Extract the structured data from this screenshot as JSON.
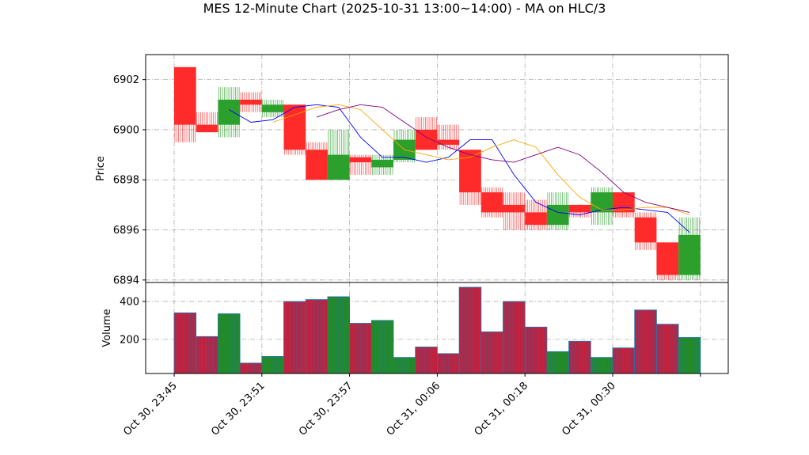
{
  "chart_data": [
    {
      "type": "candlestick",
      "title": "MES 12-Minute Chart (2025-10-31 13:00~14:00) - MA on HLC/3",
      "ylabel": "Price",
      "ylim": [
        6893.9,
        6903.0
      ],
      "yticks": [
        6894,
        6896,
        6898,
        6900,
        6902
      ],
      "grid": true,
      "colors": {
        "up": "#2ca02c",
        "down": "#ff2b2b",
        "ma_fast": "#0000ff",
        "ma_mid": "#ffa500",
        "ma_slow": "#800080"
      },
      "x_tick_labels": [
        "Oct 30, 23:45",
        "Oct 30, 23:51",
        "Oct 30, 23:57",
        "Oct 31, 00:06",
        "Oct 31, 00:18",
        "Oct 31, 00:30"
      ],
      "candles": [
        {
          "open": 6902.5,
          "high": 6902.5,
          "low": 6899.5,
          "close": 6900.2
        },
        {
          "open": 6900.2,
          "high": 6900.7,
          "low": 6899.9,
          "close": 6899.9
        },
        {
          "open": 6900.2,
          "high": 6901.7,
          "low": 6899.7,
          "close": 6901.2
        },
        {
          "open": 6901.2,
          "high": 6901.5,
          "low": 6900.7,
          "close": 6901.0
        },
        {
          "open": 6900.7,
          "high": 6901.2,
          "low": 6900.5,
          "close": 6901.0
        },
        {
          "open": 6901.0,
          "high": 6901.0,
          "low": 6899.0,
          "close": 6899.2
        },
        {
          "open": 6899.2,
          "high": 6899.5,
          "low": 6898.0,
          "close": 6898.0
        },
        {
          "open": 6898.0,
          "high": 6900.0,
          "low": 6898.0,
          "close": 6899.0
        },
        {
          "open": 6898.9,
          "high": 6899.0,
          "low": 6898.2,
          "close": 6898.7
        },
        {
          "open": 6898.5,
          "high": 6899.0,
          "low": 6898.2,
          "close": 6898.8
        },
        {
          "open": 6898.8,
          "high": 6900.0,
          "low": 6898.7,
          "close": 6899.6
        },
        {
          "open": 6900.0,
          "high": 6900.5,
          "low": 6899.2,
          "close": 6899.2
        },
        {
          "open": 6899.6,
          "high": 6900.2,
          "low": 6899.2,
          "close": 6899.4
        },
        {
          "open": 6899.2,
          "high": 6899.2,
          "low": 6897.0,
          "close": 6897.5
        },
        {
          "open": 6897.5,
          "high": 6897.7,
          "low": 6896.5,
          "close": 6896.7
        },
        {
          "open": 6897.0,
          "high": 6897.5,
          "low": 6896.0,
          "close": 6896.7
        },
        {
          "open": 6896.7,
          "high": 6897.2,
          "low": 6896.0,
          "close": 6896.2
        },
        {
          "open": 6896.2,
          "high": 6897.5,
          "low": 6896.0,
          "close": 6897.0
        },
        {
          "open": 6897.0,
          "high": 6897.0,
          "low": 6896.5,
          "close": 6896.7
        },
        {
          "open": 6896.7,
          "high": 6897.7,
          "low": 6896.2,
          "close": 6897.5
        },
        {
          "open": 6897.5,
          "high": 6897.5,
          "low": 6896.5,
          "close": 6896.7
        },
        {
          "open": 6896.5,
          "high": 6896.7,
          "low": 6895.2,
          "close": 6895.5
        },
        {
          "open": 6895.5,
          "high": 6895.5,
          "low": 6894.0,
          "close": 6894.2
        },
        {
          "open": 6894.2,
          "high": 6896.5,
          "low": 6894.0,
          "close": 6895.8
        }
      ],
      "moving_averages": [
        {
          "color": "blue",
          "values": [
            6900.8,
            6900.3,
            6900.4,
            6900.9,
            6901.0,
            6900.9,
            6899.7,
            6898.9,
            6898.9,
            6898.7,
            6898.9,
            6899.6,
            6899.6,
            6898.2,
            6897.1,
            6896.7,
            6896.6,
            6896.8,
            6896.9,
            6896.8,
            6896.7,
            6895.9
          ]
        },
        {
          "color": "orange",
          "values": [
            6900.3,
            6900.6,
            6900.9,
            6901.0,
            6900.8,
            6900.0,
            6899.2,
            6899.0,
            6898.8,
            6898.9,
            6899.3,
            6899.6,
            6899.3,
            6898.2,
            6897.3,
            6896.8,
            6896.8,
            6896.9,
            6896.9,
            6896.6
          ]
        },
        {
          "color": "purple",
          "values": [
            6900.5,
            6900.8,
            6901.0,
            6900.9,
            6900.3,
            6899.7,
            6899.3,
            6899.0,
            6898.8,
            6898.7,
            6899.0,
            6899.3,
            6899.0,
            6898.3,
            6897.5,
            6897.1,
            6896.9,
            6896.7
          ]
        }
      ]
    },
    {
      "type": "bar",
      "ylabel": "Volume",
      "ylim": [
        20,
        500
      ],
      "yticks": [
        200,
        400
      ],
      "grid": true,
      "values": [
        340,
        215,
        335,
        75,
        110,
        400,
        410,
        425,
        285,
        300,
        105,
        160,
        125,
        475,
        240,
        400,
        265,
        135,
        190,
        105,
        155,
        355,
        280,
        210
      ],
      "directions": [
        "down",
        "down",
        "up",
        "down",
        "up",
        "down",
        "down",
        "up",
        "down",
        "up",
        "up",
        "down",
        "down",
        "down",
        "down",
        "down",
        "down",
        "up",
        "down",
        "up",
        "down",
        "down",
        "down",
        "up"
      ]
    }
  ]
}
